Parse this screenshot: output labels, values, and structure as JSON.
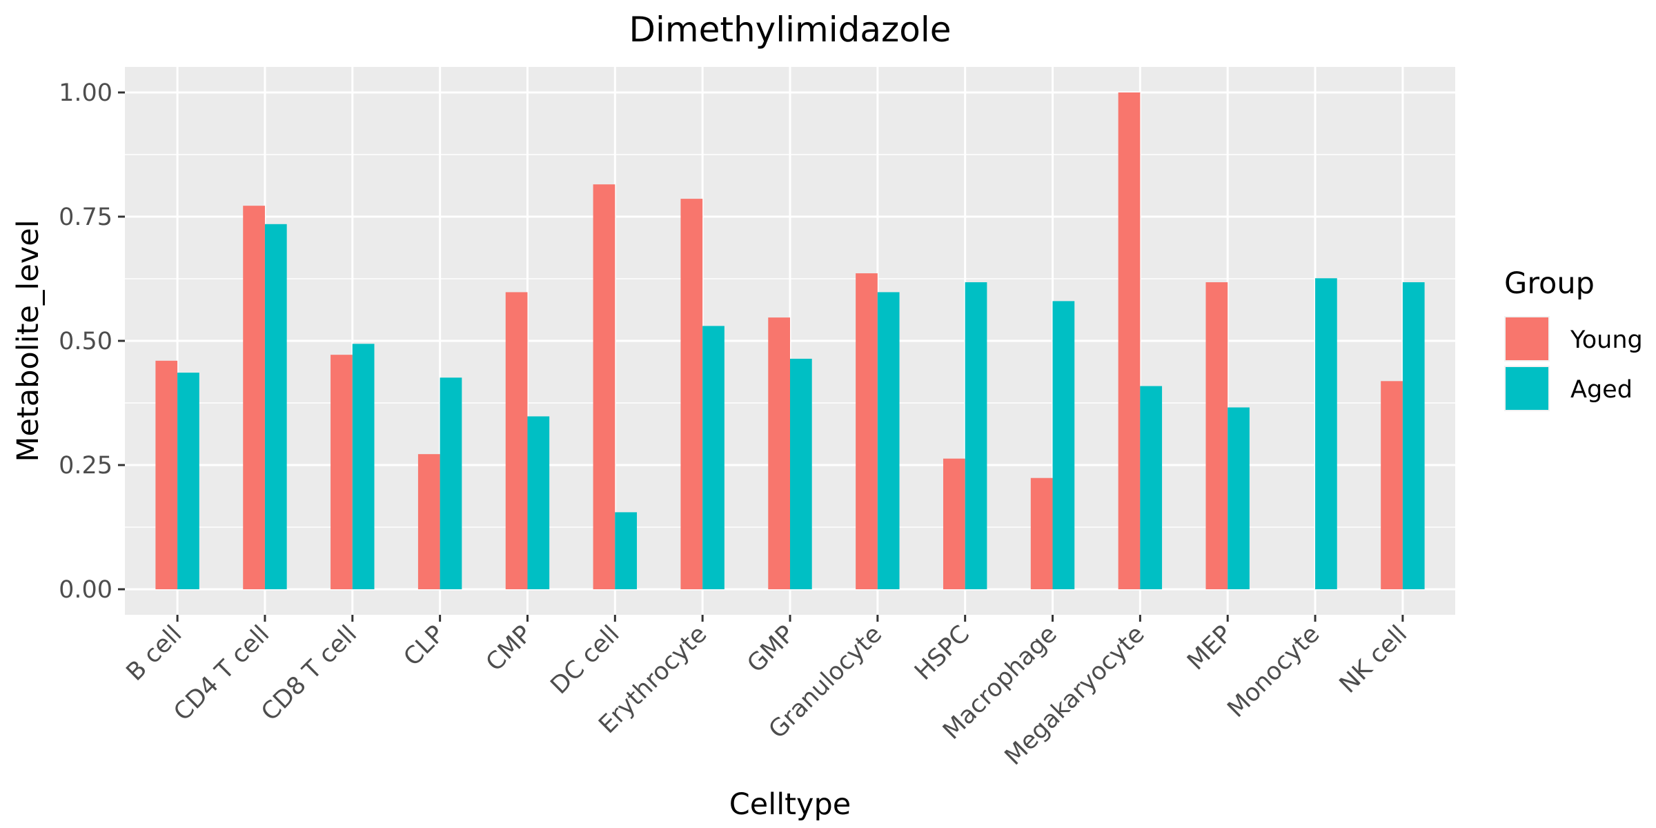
{
  "chart_data": {
    "type": "bar",
    "title": "Dimethylimidazole",
    "xlabel": "Celltype",
    "ylabel": "Metabolite_level",
    "categories": [
      "B cell",
      "CD4 T cell",
      "CD8 T cell",
      "CLP",
      "CMP",
      "DC cell",
      "Erythrocyte",
      "GMP",
      "Granulocyte",
      "HSPC",
      "Macrophage",
      "Megakaryocyte",
      "MEP",
      "Monocyte",
      "NK cell"
    ],
    "series": [
      {
        "name": "Young",
        "color": "#F8766D",
        "values": [
          0.46,
          0.772,
          0.472,
          0.272,
          0.598,
          0.815,
          0.786,
          0.547,
          0.636,
          0.263,
          0.224,
          1.0,
          0.618,
          null,
          0.419
        ]
      },
      {
        "name": "Aged",
        "color": "#00BFC4",
        "values": [
          0.436,
          0.735,
          0.494,
          0.426,
          0.348,
          0.155,
          0.53,
          0.464,
          0.598,
          0.618,
          0.58,
          0.409,
          0.366,
          0.626,
          0.618
        ]
      }
    ],
    "ylim": [
      -0.0514,
      1.0514
    ],
    "yticks": [
      0.0,
      0.25,
      0.5,
      0.75,
      1.0
    ],
    "ytick_labels": [
      "0.00",
      "0.25",
      "0.50",
      "0.75",
      "1.00"
    ],
    "grid": true,
    "legend": {
      "title": "Group",
      "position": "right"
    }
  }
}
